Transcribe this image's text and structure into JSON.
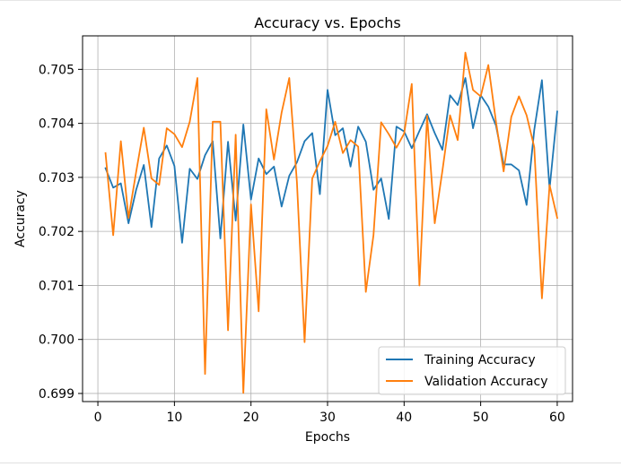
{
  "chart_data": {
    "type": "line",
    "title": "Accuracy vs. Epochs",
    "xlabel": "Epochs",
    "ylabel": "Accuracy",
    "xlim": [
      -2,
      62
    ],
    "ylim": [
      0.69885,
      0.70562
    ],
    "xticks": [
      0,
      10,
      20,
      30,
      40,
      50,
      60
    ],
    "yticks": [
      0.699,
      0.7,
      0.701,
      0.702,
      0.703,
      0.704,
      0.705
    ],
    "ytick_labels": [
      "0.699",
      "0.700",
      "0.701",
      "0.702",
      "0.703",
      "0.704",
      "0.705"
    ],
    "grid": true,
    "legend_position": "lower-right",
    "x": [
      1,
      2,
      3,
      4,
      5,
      6,
      7,
      8,
      9,
      10,
      11,
      12,
      13,
      14,
      15,
      16,
      17,
      18,
      19,
      20,
      21,
      22,
      23,
      24,
      25,
      26,
      27,
      28,
      29,
      30,
      31,
      32,
      33,
      34,
      35,
      36,
      37,
      38,
      39,
      40,
      41,
      42,
      43,
      44,
      45,
      46,
      47,
      48,
      49,
      50,
      51,
      52,
      53,
      54,
      55,
      56,
      57,
      58,
      59,
      60
    ],
    "series": [
      {
        "name": "Training Accuracy",
        "color": "#1f77b4",
        "values": [
          0.70317,
          0.70281,
          0.70289,
          0.70215,
          0.70277,
          0.70323,
          0.70208,
          0.70335,
          0.70359,
          0.70321,
          0.70179,
          0.70316,
          0.70297,
          0.70341,
          0.70367,
          0.70187,
          0.70366,
          0.7022,
          0.70398,
          0.70259,
          0.70335,
          0.70306,
          0.7032,
          0.70246,
          0.70303,
          0.70328,
          0.70367,
          0.70382,
          0.70269,
          0.70462,
          0.70378,
          0.70391,
          0.7032,
          0.70394,
          0.70366,
          0.70277,
          0.70298,
          0.70223,
          0.70394,
          0.70385,
          0.70354,
          0.70386,
          0.70417,
          0.70382,
          0.70351,
          0.70452,
          0.70434,
          0.70484,
          0.70391,
          0.70452,
          0.70431,
          0.70396,
          0.70324,
          0.70324,
          0.70313,
          0.70249,
          0.70388,
          0.7048,
          0.70279,
          0.70422
        ]
      },
      {
        "name": "Validation Accuracy",
        "color": "#ff7f0e",
        "values": [
          0.70345,
          0.70193,
          0.70367,
          0.70225,
          0.7031,
          0.70392,
          0.70298,
          0.70286,
          0.70391,
          0.7038,
          0.70356,
          0.70403,
          0.70484,
          0.69936,
          0.70403,
          0.70403,
          0.70017,
          0.70379,
          0.69901,
          0.7025,
          0.70052,
          0.70426,
          0.70333,
          0.7042,
          0.70484,
          0.70291,
          0.69995,
          0.70298,
          0.7033,
          0.70358,
          0.70403,
          0.70345,
          0.70369,
          0.70357,
          0.70088,
          0.70193,
          0.70402,
          0.7038,
          0.70355,
          0.70381,
          0.70473,
          0.701,
          0.70414,
          0.70215,
          0.70312,
          0.70415,
          0.70369,
          0.70531,
          0.70462,
          0.7045,
          0.70508,
          0.70403,
          0.70311,
          0.70412,
          0.7045,
          0.70415,
          0.70356,
          0.70076,
          0.70286,
          0.70225
        ]
      }
    ]
  }
}
